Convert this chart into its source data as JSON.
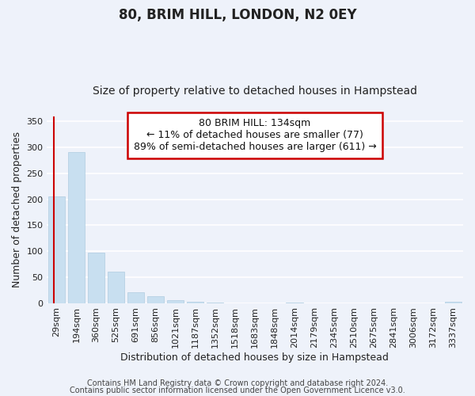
{
  "title": "80, BRIM HILL, LONDON, N2 0EY",
  "subtitle": "Size of property relative to detached houses in Hampstead",
  "xlabel": "Distribution of detached houses by size in Hampstead",
  "ylabel": "Number of detached properties",
  "bar_labels": [
    "29sqm",
    "194sqm",
    "360sqm",
    "525sqm",
    "691sqm",
    "856sqm",
    "1021sqm",
    "1187sqm",
    "1352sqm",
    "1518sqm",
    "1683sqm",
    "1848sqm",
    "2014sqm",
    "2179sqm",
    "2345sqm",
    "2510sqm",
    "2675sqm",
    "2841sqm",
    "3006sqm",
    "3172sqm",
    "3337sqm"
  ],
  "bar_values": [
    205,
    291,
    97,
    61,
    21,
    13,
    5,
    2,
    1,
    0,
    0,
    0,
    1,
    0,
    0,
    0,
    0,
    0,
    0,
    0,
    2
  ],
  "bar_color_normal": "#c8dff0",
  "bar_color_edge": "#b0cce0",
  "annotation_text": "80 BRIM HILL: 134sqm\n← 11% of detached houses are smaller (77)\n89% of semi-detached houses are larger (611) →",
  "annotation_box_color": "#ffffff",
  "annotation_box_edgecolor": "#cc0000",
  "red_line_x": 0.38,
  "ylim": [
    0,
    360
  ],
  "yticks": [
    0,
    50,
    100,
    150,
    200,
    250,
    300,
    350
  ],
  "footer_line1": "Contains HM Land Registry data © Crown copyright and database right 2024.",
  "footer_line2": "Contains public sector information licensed under the Open Government Licence v3.0.",
  "background_color": "#eef2fa",
  "grid_color": "#ffffff",
  "title_fontsize": 12,
  "subtitle_fontsize": 10,
  "axis_label_fontsize": 9,
  "tick_fontsize": 8,
  "annotation_fontsize": 9,
  "footer_fontsize": 7
}
